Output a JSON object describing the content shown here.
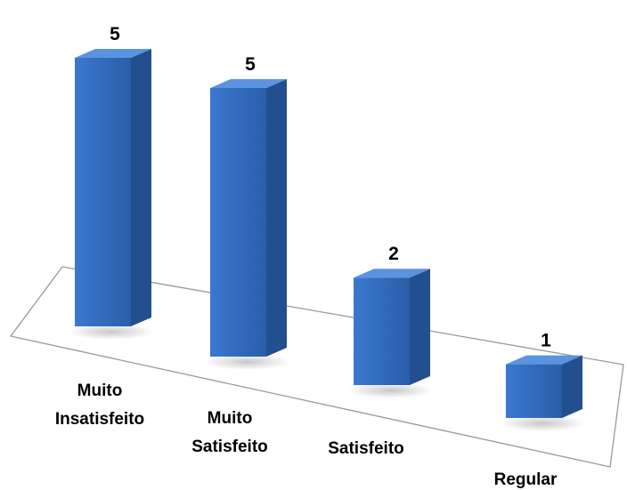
{
  "chart_data": {
    "type": "bar",
    "style": "3d-column",
    "categories": [
      [
        "Muito",
        "Insatisfeito"
      ],
      [
        "Muito",
        "Satisfeito"
      ],
      [
        "Satisfeito"
      ],
      [
        "Regular"
      ]
    ],
    "values": [
      5,
      5,
      2,
      1
    ],
    "data_labels": [
      "5",
      "5",
      "2",
      "1"
    ],
    "ylim": [
      0,
      5
    ],
    "grid": false,
    "legend": "none",
    "colors": {
      "front": "#3a78cf",
      "front_dark": "#2a5ea8",
      "side": "#234f8e",
      "top": "#5a93df",
      "floor_stroke": "#9a9a9a"
    }
  }
}
